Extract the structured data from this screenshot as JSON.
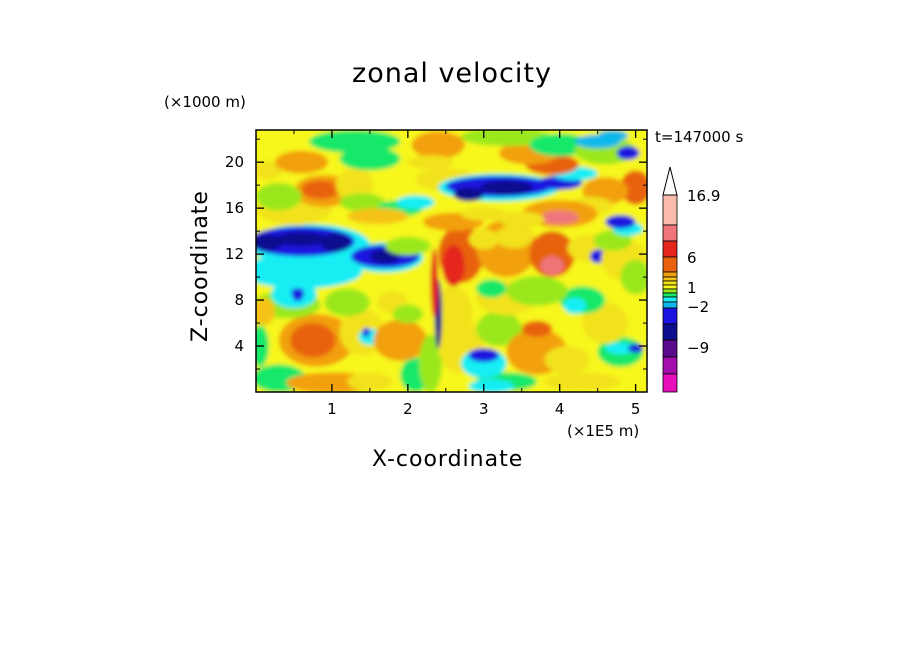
{
  "chart_data": {
    "type": "heatmap",
    "title": "zonal velocity",
    "xlabel": "X-coordinate",
    "ylabel": "Z-coordinate",
    "x_unit": "(×1E5 m)",
    "y_unit": "(×1000 m)",
    "annotation": "t=147000 s",
    "xlim": [
      0,
      5.15
    ],
    "ylim": [
      0,
      22.8
    ],
    "x_ticks": [
      "1",
      "2",
      "3",
      "4",
      "5"
    ],
    "y_ticks": [
      "4",
      "8",
      "12",
      "16",
      "20"
    ],
    "colorbar": {
      "labels": [
        "16.9",
        "6",
        "1",
        "-2",
        "-9"
      ],
      "extend": "max",
      "colors": [
        "#fbbcae",
        "#f0757a",
        "#e4261c",
        "#e8620f",
        "#f2a00e",
        "#f5c212",
        "#f2e21a",
        "#f7f71a",
        "#9ae81a",
        "#16e869",
        "#19eef4",
        "#0fb8ea",
        "#1b14e0",
        "#0d0f8f",
        "#5a0a8a",
        "#a30eaa",
        "#e60fba"
      ]
    },
    "field": {
      "description": "zonal velocity contour field",
      "bands": [
        {
          "z": [
            19,
            22.8
          ],
          "dominant": "positive"
        },
        {
          "z": [
            15,
            19
          ],
          "dominant": "positive"
        },
        {
          "z": [
            11,
            15
          ],
          "dominant": "negative"
        },
        {
          "z": [
            0,
            11
          ],
          "dominant": "mixed"
        }
      ]
    }
  }
}
